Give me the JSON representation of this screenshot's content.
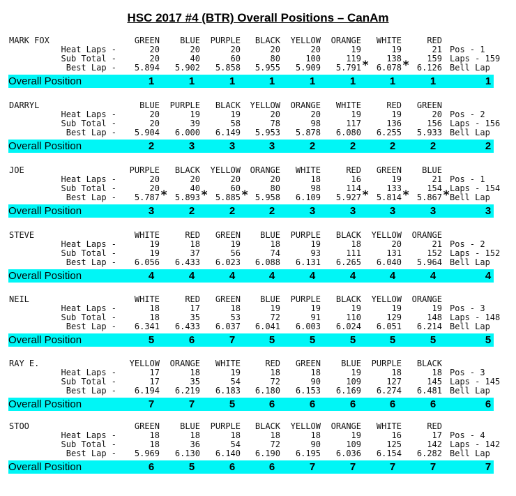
{
  "title": "HSC 2017 #4 (BTR) Overall Positions – CanAm",
  "labels": {
    "heat_laps": "Heat Laps -",
    "sub_total": "Sub Total -",
    "best_lap": "Best Lap -",
    "overall_position": "Overall Position",
    "bell_lap": "Bell Lap"
  },
  "drivers": [
    {
      "name": "MARK FOX",
      "lanes": [
        "GREEN",
        "BLUE",
        "PURPLE",
        "BLACK",
        "YELLOW",
        "ORANGE",
        "WHITE",
        "RED"
      ],
      "heat_laps": [
        "20",
        "20",
        "20",
        "20",
        "20",
        "19",
        "19",
        "21"
      ],
      "sub_total": [
        "20",
        "40",
        "60",
        "80",
        "100",
        "119",
        "138",
        "159"
      ],
      "best_lap": [
        "5.894",
        "5.902",
        "5.858",
        "5.955",
        "5.909",
        "5.791",
        "6.078",
        "6.126"
      ],
      "stars": [
        false,
        false,
        false,
        false,
        false,
        true,
        true,
        false
      ],
      "pos": "Pos - 1",
      "laps": "Laps - 159",
      "overall": [
        "1",
        "1",
        "1",
        "1",
        "1",
        "1",
        "1",
        "1"
      ],
      "final": "1"
    },
    {
      "name": "DARRYL",
      "lanes": [
        "BLUE",
        "PURPLE",
        "BLACK",
        "YELLOW",
        "ORANGE",
        "WHITE",
        "RED",
        "GREEN"
      ],
      "heat_laps": [
        "20",
        "19",
        "19",
        "20",
        "20",
        "19",
        "19",
        "20"
      ],
      "sub_total": [
        "20",
        "39",
        "58",
        "78",
        "98",
        "117",
        "136",
        "156"
      ],
      "best_lap": [
        "5.904",
        "6.000",
        "6.149",
        "5.953",
        "5.878",
        "6.080",
        "6.255",
        "5.933"
      ],
      "stars": [
        false,
        false,
        false,
        false,
        false,
        false,
        false,
        false
      ],
      "pos": "Pos - 2",
      "laps": "Laps - 156",
      "overall": [
        "2",
        "3",
        "3",
        "3",
        "2",
        "2",
        "2",
        "2"
      ],
      "final": "2"
    },
    {
      "name": "JOE",
      "lanes": [
        "PURPLE",
        "BLACK",
        "YELLOW",
        "ORANGE",
        "WHITE",
        "RED",
        "GREEN",
        "BLUE"
      ],
      "heat_laps": [
        "20",
        "20",
        "20",
        "20",
        "18",
        "16",
        "19",
        "21"
      ],
      "sub_total": [
        "20",
        "40",
        "60",
        "80",
        "98",
        "114",
        "133",
        "154"
      ],
      "best_lap": [
        "5.787",
        "5.893",
        "5.885",
        "5.958",
        "6.109",
        "5.927",
        "5.814",
        "5.867"
      ],
      "stars": [
        true,
        true,
        true,
        false,
        false,
        true,
        true,
        true
      ],
      "pos": "Pos - 1",
      "laps": "Laps - 154",
      "overall": [
        "3",
        "2",
        "2",
        "2",
        "3",
        "3",
        "3",
        "3"
      ],
      "final": "3"
    },
    {
      "name": "STEVE",
      "lanes": [
        "WHITE",
        "RED",
        "GREEN",
        "BLUE",
        "PURPLE",
        "BLACK",
        "YELLOW",
        "ORANGE"
      ],
      "heat_laps": [
        "19",
        "18",
        "19",
        "18",
        "19",
        "18",
        "20",
        "21"
      ],
      "sub_total": [
        "19",
        "37",
        "56",
        "74",
        "93",
        "111",
        "131",
        "152"
      ],
      "best_lap": [
        "6.056",
        "6.433",
        "6.023",
        "6.088",
        "6.131",
        "6.265",
        "6.040",
        "5.964"
      ],
      "stars": [
        false,
        false,
        false,
        false,
        false,
        false,
        false,
        false
      ],
      "pos": "Pos - 2",
      "laps": "Laps - 152",
      "overall": [
        "4",
        "4",
        "4",
        "4",
        "4",
        "4",
        "4",
        "4"
      ],
      "final": "4"
    },
    {
      "name": "NEIL",
      "lanes": [
        "WHITE",
        "RED",
        "GREEN",
        "BLUE",
        "PURPLE",
        "BLACK",
        "YELLOW",
        "ORANGE"
      ],
      "heat_laps": [
        "18",
        "17",
        "18",
        "19",
        "19",
        "19",
        "19",
        "19"
      ],
      "sub_total": [
        "18",
        "35",
        "53",
        "72",
        "91",
        "110",
        "129",
        "148"
      ],
      "best_lap": [
        "6.341",
        "6.433",
        "6.037",
        "6.041",
        "6.003",
        "6.024",
        "6.051",
        "6.214"
      ],
      "stars": [
        false,
        false,
        false,
        false,
        false,
        false,
        false,
        false
      ],
      "pos": "Pos - 3",
      "laps": "Laps - 148",
      "overall": [
        "5",
        "6",
        "7",
        "5",
        "5",
        "5",
        "5",
        "5"
      ],
      "final": "5"
    },
    {
      "name": "RAY E.",
      "lanes": [
        "YELLOW",
        "ORANGE",
        "WHITE",
        "RED",
        "GREEN",
        "BLUE",
        "PURPLE",
        "BLACK"
      ],
      "heat_laps": [
        "17",
        "18",
        "19",
        "18",
        "18",
        "19",
        "18",
        "18"
      ],
      "sub_total": [
        "17",
        "35",
        "54",
        "72",
        "90",
        "109",
        "127",
        "145"
      ],
      "best_lap": [
        "6.194",
        "6.219",
        "6.183",
        "6.180",
        "6.153",
        "6.169",
        "6.274",
        "6.481"
      ],
      "stars": [
        false,
        false,
        false,
        false,
        false,
        false,
        false,
        false
      ],
      "pos": "Pos - 3",
      "laps": "Laps - 145",
      "overall": [
        "7",
        "7",
        "5",
        "6",
        "6",
        "6",
        "6",
        "6"
      ],
      "final": "6"
    },
    {
      "name": "STOO",
      "lanes": [
        "GREEN",
        "BLUE",
        "PURPLE",
        "BLACK",
        "YELLOW",
        "ORANGE",
        "WHITE",
        "RED"
      ],
      "heat_laps": [
        "18",
        "18",
        "18",
        "18",
        "18",
        "19",
        "16",
        "17"
      ],
      "sub_total": [
        "18",
        "36",
        "54",
        "72",
        "90",
        "109",
        "125",
        "142"
      ],
      "best_lap": [
        "5.969",
        "6.130",
        "6.140",
        "6.190",
        "6.195",
        "6.036",
        "6.154",
        "6.282"
      ],
      "stars": [
        false,
        false,
        false,
        false,
        false,
        false,
        false,
        false
      ],
      "pos": "Pos - 4",
      "laps": "Laps - 142",
      "overall": [
        "6",
        "5",
        "6",
        "6",
        "7",
        "7",
        "7",
        "7"
      ],
      "final": "7"
    }
  ],
  "colors": {
    "position_bar": "#00f6f6"
  }
}
